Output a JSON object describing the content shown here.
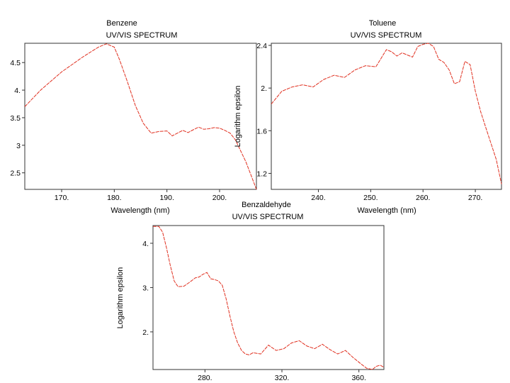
{
  "chart_data": [
    {
      "type": "line",
      "title": "Benzene",
      "subtitle": "UV/VIS SPECTRUM",
      "xlabel": "Wavelength (nm)",
      "ylabel": "",
      "xlim": [
        163,
        207
      ],
      "ylim": [
        2.2,
        4.85
      ],
      "xticks": [
        170,
        180,
        190,
        200
      ],
      "xtick_labels": [
        "170.",
        "180.",
        "190.",
        "200."
      ],
      "yticks": [
        2.5,
        3,
        3.5,
        4,
        4.5
      ],
      "ytick_labels": [
        "2.5",
        "3",
        "3.5",
        "4.",
        "4.5"
      ],
      "grid": false,
      "line_color": "#e03020",
      "series": [
        {
          "x": [
            163,
            166,
            170,
            174,
            177,
            178.5,
            180,
            181,
            182.5,
            184,
            185.5,
            187,
            188.5,
            190,
            191,
            192,
            193,
            194,
            195,
            196,
            197,
            198,
            199,
            200,
            201,
            202,
            203,
            204,
            205,
            206,
            207
          ],
          "y": [
            3.7,
            4.0,
            4.33,
            4.6,
            4.78,
            4.84,
            4.78,
            4.55,
            4.15,
            3.72,
            3.4,
            3.22,
            3.25,
            3.26,
            3.17,
            3.22,
            3.27,
            3.23,
            3.28,
            3.33,
            3.29,
            3.3,
            3.32,
            3.31,
            3.27,
            3.22,
            3.1,
            2.9,
            2.7,
            2.45,
            2.2
          ]
        }
      ]
    },
    {
      "type": "line",
      "title": "Toluene",
      "subtitle": "UV/VIS SPECTRUM",
      "xlabel": "Wavelength (nm)",
      "ylabel": "Logarithm epsilon",
      "xlim": [
        231,
        275
      ],
      "ylim": [
        1.05,
        2.42
      ],
      "xticks": [
        240,
        250,
        260,
        270
      ],
      "xtick_labels": [
        "240.",
        "250.",
        "260.",
        "270."
      ],
      "yticks": [
        1.2,
        1.6,
        2,
        2.4
      ],
      "ytick_labels": [
        "1.2",
        "1.6",
        "2.",
        "2.4"
      ],
      "grid": false,
      "line_color": "#e03020",
      "series": [
        {
          "x": [
            231,
            233,
            235,
            237,
            239,
            241,
            243,
            245,
            247,
            249,
            251,
            252,
            253,
            254,
            255,
            256,
            257,
            258,
            259,
            260,
            261,
            262,
            263,
            264,
            265,
            266,
            267,
            268,
            269,
            270,
            271,
            272,
            273,
            274,
            275
          ],
          "y": [
            1.85,
            1.97,
            2.01,
            2.03,
            2.01,
            2.08,
            2.12,
            2.1,
            2.17,
            2.21,
            2.2,
            2.28,
            2.36,
            2.34,
            2.3,
            2.33,
            2.31,
            2.29,
            2.39,
            2.41,
            2.42,
            2.39,
            2.27,
            2.24,
            2.17,
            2.04,
            2.06,
            2.25,
            2.22,
            1.97,
            1.78,
            1.63,
            1.48,
            1.33,
            1.1
          ]
        }
      ]
    },
    {
      "type": "line",
      "title": "Benzaldehyde",
      "subtitle": "UV/VIS SPECTRUM",
      "xlabel": "",
      "ylabel": "Logarithm epsilon",
      "xlim": [
        253,
        373
      ],
      "ylim": [
        1.15,
        4.4
      ],
      "xticks": [
        280,
        320,
        360
      ],
      "xtick_labels": [
        "280.",
        "320.",
        "360."
      ],
      "yticks": [
        2,
        3,
        4
      ],
      "ytick_labels": [
        "2.",
        "3.",
        "4."
      ],
      "grid": false,
      "line_color": "#e03020",
      "series": [
        {
          "x": [
            253,
            256,
            258,
            260,
            262,
            264,
            266,
            269,
            272,
            275,
            277,
            279,
            281,
            283,
            285,
            287,
            289,
            291,
            293,
            295,
            297,
            299,
            301,
            303,
            305,
            309,
            313,
            317,
            321,
            325,
            329,
            333,
            337,
            341,
            345,
            349,
            353,
            357,
            361,
            364,
            367,
            369,
            371,
            373
          ],
          "y": [
            4.38,
            4.38,
            4.25,
            3.9,
            3.5,
            3.15,
            3.02,
            3.03,
            3.12,
            3.22,
            3.24,
            3.3,
            3.34,
            3.2,
            3.18,
            3.15,
            3.05,
            2.75,
            2.35,
            2.0,
            1.75,
            1.58,
            1.5,
            1.48,
            1.53,
            1.5,
            1.7,
            1.58,
            1.62,
            1.75,
            1.8,
            1.68,
            1.62,
            1.72,
            1.6,
            1.5,
            1.58,
            1.42,
            1.28,
            1.18,
            1.15,
            1.22,
            1.25,
            1.2
          ]
        }
      ]
    }
  ]
}
